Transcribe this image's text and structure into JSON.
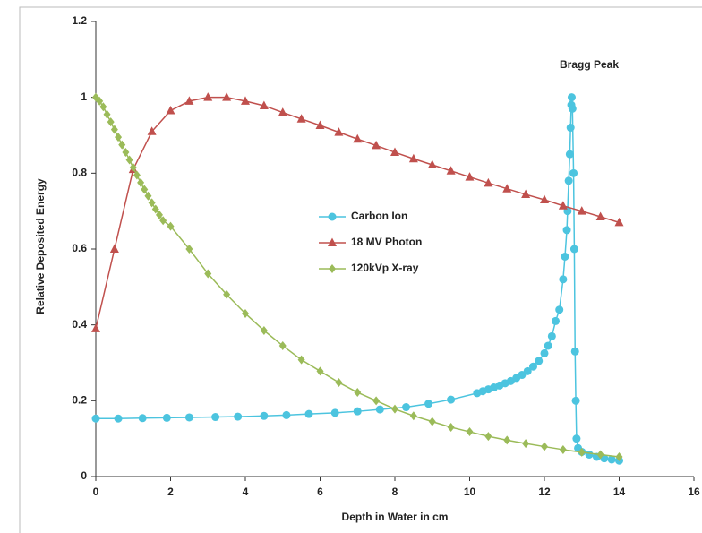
{
  "chart_data": {
    "type": "line",
    "annotation": "Bragg Peak",
    "xlabel": "Depth in Water in cm",
    "ylabel": "Relative Deposited Energy",
    "xlim": [
      0,
      16
    ],
    "xticks": [
      0,
      2,
      4,
      6,
      8,
      10,
      12,
      14,
      16
    ],
    "ylim": [
      0,
      1.2
    ],
    "yticks": [
      0,
      0.2,
      0.4,
      0.6,
      0.8,
      1,
      1.2
    ],
    "series": [
      {
        "name": "Carbon Ion",
        "color": "#4cc4df",
        "marker": "circle",
        "x": [
          0,
          0.6,
          1.25,
          1.9,
          2.5,
          3.2,
          3.8,
          4.5,
          5.1,
          5.7,
          6.4,
          7.0,
          7.6,
          8.3,
          8.9,
          9.5,
          10.2,
          10.35,
          10.5,
          10.65,
          10.8,
          10.95,
          11.1,
          11.25,
          11.4,
          11.55,
          11.7,
          11.85,
          12.0,
          12.1,
          12.2,
          12.3,
          12.4,
          12.5,
          12.55,
          12.6,
          12.62,
          12.65,
          12.68,
          12.7,
          12.72,
          12.73,
          12.75,
          12.78,
          12.8,
          12.82,
          12.84,
          12.86,
          12.9,
          13.0,
          13.2,
          13.4,
          13.6,
          13.8,
          14.0
        ],
        "values": [
          0.153,
          0.153,
          0.154,
          0.155,
          0.156,
          0.157,
          0.158,
          0.16,
          0.162,
          0.165,
          0.168,
          0.172,
          0.177,
          0.183,
          0.192,
          0.203,
          0.22,
          0.225,
          0.23,
          0.235,
          0.24,
          0.246,
          0.252,
          0.26,
          0.268,
          0.278,
          0.29,
          0.305,
          0.325,
          0.345,
          0.37,
          0.41,
          0.44,
          0.52,
          0.58,
          0.65,
          0.7,
          0.78,
          0.85,
          0.92,
          0.98,
          1.0,
          0.97,
          0.8,
          0.6,
          0.33,
          0.2,
          0.1,
          0.075,
          0.065,
          0.058,
          0.052,
          0.048,
          0.045,
          0.042
        ]
      },
      {
        "name": "18 MV Photon",
        "color": "#c0504d",
        "marker": "triangle",
        "x": [
          0,
          0.5,
          1,
          1.5,
          2,
          2.5,
          3,
          3.5,
          4,
          4.5,
          5,
          5.5,
          6,
          6.5,
          7,
          7.5,
          8,
          8.5,
          9,
          9.5,
          10,
          10.5,
          11,
          11.5,
          12,
          12.5,
          13,
          13.5,
          14
        ],
        "values": [
          0.39,
          0.6,
          0.81,
          0.91,
          0.965,
          0.99,
          1.0,
          1.0,
          0.99,
          0.978,
          0.96,
          0.943,
          0.926,
          0.908,
          0.89,
          0.873,
          0.855,
          0.838,
          0.822,
          0.806,
          0.79,
          0.774,
          0.759,
          0.744,
          0.73,
          0.714,
          0.7,
          0.685,
          0.67
        ]
      },
      {
        "name": "120kVp X-ray",
        "color": "#9bbb59",
        "marker": "diamond",
        "x": [
          0,
          0.1,
          0.2,
          0.3,
          0.4,
          0.5,
          0.6,
          0.7,
          0.8,
          0.9,
          1.0,
          1.1,
          1.2,
          1.3,
          1.4,
          1.5,
          1.6,
          1.7,
          1.8,
          2.0,
          2.5,
          3,
          3.5,
          4,
          4.5,
          5,
          5.5,
          6,
          6.5,
          7,
          7.5,
          8,
          8.5,
          9,
          9.5,
          10,
          10.5,
          11,
          11.5,
          12,
          12.5,
          13,
          13.5,
          14
        ],
        "values": [
          1.0,
          0.99,
          0.975,
          0.955,
          0.935,
          0.915,
          0.895,
          0.875,
          0.855,
          0.835,
          0.815,
          0.795,
          0.775,
          0.757,
          0.74,
          0.722,
          0.705,
          0.69,
          0.675,
          0.66,
          0.6,
          0.535,
          0.48,
          0.43,
          0.385,
          0.345,
          0.308,
          0.278,
          0.248,
          0.222,
          0.2,
          0.178,
          0.16,
          0.145,
          0.13,
          0.118,
          0.106,
          0.096,
          0.087,
          0.079,
          0.071,
          0.064,
          0.058,
          0.052
        ]
      }
    ]
  }
}
